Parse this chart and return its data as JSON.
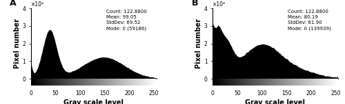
{
  "panel_A": {
    "label": "A",
    "stats_text": "Count: 122.8800\nMean: 99.05\nStdDev: 69.52\nMode: 0 (59186)",
    "xlabel": "Gray scale level",
    "ylabel": "Pixel number",
    "ylim": [
      0,
      40000
    ],
    "yticks": [
      0,
      10000,
      20000,
      30000,
      40000
    ],
    "ytick_labels": [
      "0",
      "1",
      "2",
      "3",
      "4"
    ],
    "yscale_label": "×10⁴"
  },
  "panel_B": {
    "label": "B",
    "stats_text": "Count: 122.8800\nMean: 80.19\nStdDev: 61.90\nMode: 0 (139939)",
    "xlabel": "Gray scale level",
    "ylabel": "Pixel number",
    "ylim": [
      0,
      40000
    ],
    "yticks": [
      0,
      10000,
      20000,
      30000,
      40000
    ],
    "ytick_labels": [
      "0",
      "1",
      "2",
      "3",
      "4"
    ],
    "yscale_label": "×10⁴"
  },
  "hist_color": "#000000",
  "bg_color": "#ffffff",
  "stats_fontsize": 5.0,
  "axis_label_fontsize": 7,
  "tick_fontsize": 5.5,
  "panel_label_fontsize": 9
}
